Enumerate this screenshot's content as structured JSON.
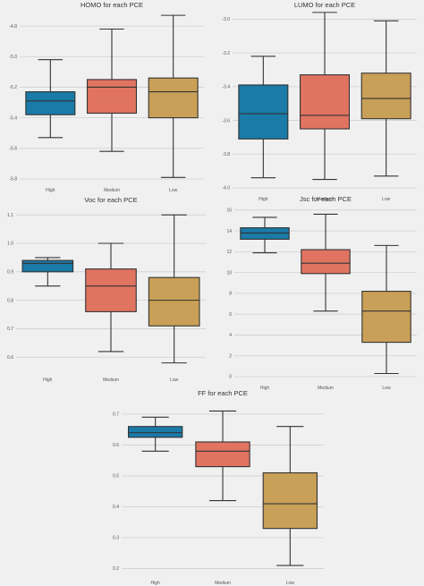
{
  "colors": {
    "background": "#f0f0f0",
    "grid": "#cfcfcf",
    "box_edge": "#333333",
    "High": "#1a7aa8",
    "Medium": "#e07461",
    "Low": "#c9a057"
  },
  "chart_data": [
    {
      "type": "box",
      "title": "HOMO for each PCE",
      "categories": [
        "High",
        "Medium",
        "Low"
      ],
      "ylim": [
        -5.8,
        -4.7
      ],
      "yticks": [
        "-4.8",
        "-5.0",
        "-5.2",
        "-5.4",
        "-5.6",
        "-5.8"
      ],
      "ytick_values": [
        -4.8,
        -5.0,
        -5.2,
        -5.4,
        -5.6,
        -5.8
      ],
      "boxes": [
        {
          "name": "High",
          "whisker_low": -5.53,
          "q1": -5.38,
          "median": -5.29,
          "q3": -5.23,
          "whisker_high": -5.02
        },
        {
          "name": "Medium",
          "whisker_low": -5.62,
          "q1": -5.37,
          "median": -5.2,
          "q3": -5.15,
          "whisker_high": -4.82
        },
        {
          "name": "Low",
          "whisker_low": -5.79,
          "q1": -5.4,
          "median": -5.23,
          "q3": -5.14,
          "whisker_high": -4.73
        }
      ]
    },
    {
      "type": "box",
      "title": "LUMO for each PCE",
      "categories": [
        "High",
        "Medium",
        "Low"
      ],
      "ylim": [
        -4.0,
        -2.95
      ],
      "yticks": [
        "-3.0",
        "-3.2",
        "-3.4",
        "-3.6",
        "-3.8",
        "-4.0"
      ],
      "ytick_values": [
        -3.0,
        -3.2,
        -3.4,
        -3.6,
        -3.8,
        -4.0
      ],
      "boxes": [
        {
          "name": "High",
          "whisker_low": -3.94,
          "q1": -3.71,
          "median": -3.56,
          "q3": -3.39,
          "whisker_high": -3.22
        },
        {
          "name": "Medium",
          "whisker_low": -3.95,
          "q1": -3.65,
          "median": -3.57,
          "q3": -3.33,
          "whisker_high": -2.96
        },
        {
          "name": "Low",
          "whisker_low": -3.93,
          "q1": -3.59,
          "median": -3.47,
          "q3": -3.32,
          "whisker_high": -3.01
        }
      ]
    },
    {
      "type": "box",
      "title": "Voc for each PCE",
      "categories": [
        "High",
        "Medium",
        "Low"
      ],
      "ylim": [
        0.56,
        1.11
      ],
      "yticks": [
        "1.1",
        "1.0",
        "0.9",
        "0.8",
        "0.7",
        "0.6"
      ],
      "ytick_values": [
        1.1,
        1.0,
        0.9,
        0.8,
        0.7,
        0.6
      ],
      "boxes": [
        {
          "name": "High",
          "whisker_low": 0.85,
          "q1": 0.9,
          "median": 0.93,
          "q3": 0.94,
          "whisker_high": 0.95
        },
        {
          "name": "Medium",
          "whisker_low": 0.62,
          "q1": 0.76,
          "median": 0.85,
          "q3": 0.91,
          "whisker_high": 1.0
        },
        {
          "name": "Low",
          "whisker_low": 0.58,
          "q1": 0.71,
          "median": 0.8,
          "q3": 0.88,
          "whisker_high": 1.1
        }
      ]
    },
    {
      "type": "box",
      "title": "Jsc for each PCE",
      "categories": [
        "High",
        "Medium",
        "Low"
      ],
      "ylim": [
        0,
        16.5
      ],
      "yticks": [
        "16",
        "14",
        "12",
        "10",
        "8",
        "6",
        "4",
        "2",
        "0"
      ],
      "ytick_values": [
        16,
        14,
        12,
        10,
        8,
        6,
        4,
        2,
        0
      ],
      "boxes": [
        {
          "name": "High",
          "whisker_low": 11.9,
          "q1": 13.2,
          "median": 13.8,
          "q3": 14.3,
          "whisker_high": 15.3
        },
        {
          "name": "Medium",
          "whisker_low": 6.3,
          "q1": 9.9,
          "median": 10.9,
          "q3": 12.2,
          "whisker_high": 15.6
        },
        {
          "name": "Low",
          "whisker_low": 0.3,
          "q1": 3.3,
          "median": 6.3,
          "q3": 8.2,
          "whisker_high": 12.6
        }
      ]
    },
    {
      "type": "box",
      "title": "FF for each PCE",
      "categories": [
        "High",
        "Medium",
        "Low"
      ],
      "ylim": [
        0.19,
        0.72
      ],
      "yticks": [
        "0.7",
        "0.6",
        "0.5",
        "0.4",
        "0.3",
        "0.2"
      ],
      "ytick_values": [
        0.7,
        0.6,
        0.5,
        0.4,
        0.3,
        0.2
      ],
      "boxes": [
        {
          "name": "High",
          "whisker_low": 0.58,
          "q1": 0.625,
          "median": 0.64,
          "q3": 0.66,
          "whisker_high": 0.69
        },
        {
          "name": "Medium",
          "whisker_low": 0.42,
          "q1": 0.53,
          "median": 0.58,
          "q3": 0.61,
          "whisker_high": 0.71
        },
        {
          "name": "Low",
          "whisker_low": 0.21,
          "q1": 0.33,
          "median": 0.41,
          "q3": 0.51,
          "whisker_high": 0.66
        }
      ]
    }
  ]
}
